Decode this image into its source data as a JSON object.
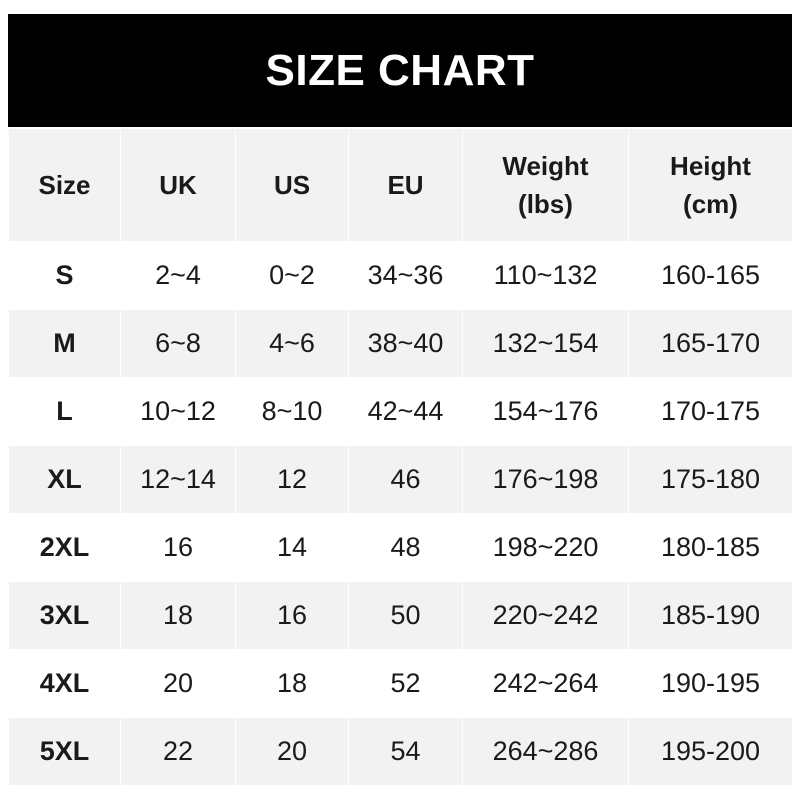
{
  "title": "SIZE CHART",
  "columns": [
    "Size",
    "UK",
    "US",
    "EU",
    "Weight\n(lbs)",
    "Height\n(cm)"
  ],
  "rows": [
    [
      "S",
      "2~4",
      "0~2",
      "34~36",
      "110~132",
      "160-165"
    ],
    [
      "M",
      "6~8",
      "4~6",
      "38~40",
      "132~154",
      "165-170"
    ],
    [
      "L",
      "10~12",
      "8~10",
      "42~44",
      "154~176",
      "170-175"
    ],
    [
      "XL",
      "12~14",
      "12",
      "46",
      "176~198",
      "175-180"
    ],
    [
      "2XL",
      "16",
      "14",
      "48",
      "198~220",
      "180-185"
    ],
    [
      "3XL",
      "18",
      "16",
      "50",
      "220~242",
      "185-190"
    ],
    [
      "4XL",
      "20",
      "18",
      "52",
      "242~264",
      "190-195"
    ],
    [
      "5XL",
      "22",
      "20",
      "54",
      "264~286",
      "195-200"
    ]
  ],
  "colors": {
    "header_bg": "#000000",
    "alt_row_bg": "#f2f2f2"
  }
}
